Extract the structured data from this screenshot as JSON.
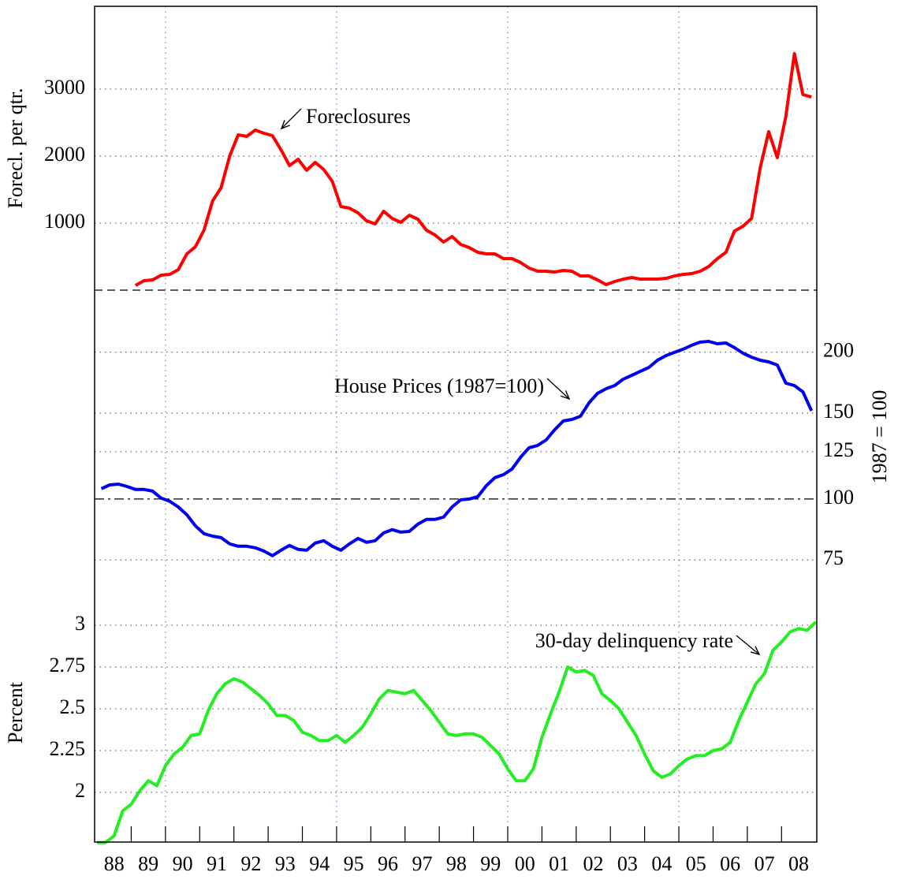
{
  "chart_data": {
    "type": "line",
    "xlim": [
      1987.93,
      2009.03
    ],
    "xticks": [
      1989,
      1990,
      1991,
      1992,
      1993,
      1994,
      1995,
      1996,
      1997,
      1998,
      1999,
      2000,
      2001,
      2002,
      2003,
      2004,
      2005,
      2006,
      2007,
      2008
    ],
    "xtick_labels": [
      {
        "value": 1988.5,
        "label": "88"
      },
      {
        "value": 1989.5,
        "label": "89"
      },
      {
        "value": 1990.5,
        "label": "90"
      },
      {
        "value": 1991.5,
        "label": "91"
      },
      {
        "value": 1992.5,
        "label": "92"
      },
      {
        "value": 1993.5,
        "label": "93"
      },
      {
        "value": 1994.5,
        "label": "94"
      },
      {
        "value": 1995.5,
        "label": "95"
      },
      {
        "value": 1996.5,
        "label": "96"
      },
      {
        "value": 1997.5,
        "label": "97"
      },
      {
        "value": 1998.5,
        "label": "98"
      },
      {
        "value": 1999.5,
        "label": "99"
      },
      {
        "value": 2000.5,
        "label": "00"
      },
      {
        "value": 2001.5,
        "label": "01"
      },
      {
        "value": 2002.5,
        "label": "02"
      },
      {
        "value": 2003.5,
        "label": "03"
      },
      {
        "value": 2004.5,
        "label": "04"
      },
      {
        "value": 2005.5,
        "label": "05"
      },
      {
        "value": 2006.5,
        "label": "06"
      },
      {
        "value": 2007.5,
        "label": "07"
      },
      {
        "value": 2008.5,
        "label": "08"
      }
    ],
    "xgrid": [
      1990,
      1995,
      2000,
      2005
    ],
    "panels": [
      {
        "ylabel": "Forecl. per qtr.",
        "axis_side": "left",
        "log_scale": false,
        "annotation": "Foreclosures",
        "color": "#ff0000",
        "ylim": [
          0,
          4235
        ],
        "yticks": [
          1000,
          2000,
          3000
        ],
        "baseline": 0,
        "baseline_style": "dashed",
        "x": [
          1989.125,
          1989.375,
          1989.625,
          1989.875,
          1990.125,
          1990.375,
          1990.625,
          1990.875,
          1991.125,
          1991.375,
          1991.625,
          1991.875,
          1992.125,
          1992.375,
          1992.625,
          1992.875,
          1993.125,
          1993.375,
          1993.625,
          1993.875,
          1994.125,
          1994.375,
          1994.625,
          1994.875,
          1995.125,
          1995.375,
          1995.625,
          1995.875,
          1996.125,
          1996.375,
          1996.625,
          1996.875,
          1997.125,
          1997.375,
          1997.625,
          1997.875,
          1998.125,
          1998.375,
          1998.625,
          1998.875,
          1999.125,
          1999.375,
          1999.625,
          1999.875,
          2000.125,
          2000.375,
          2000.625,
          2000.875,
          2001.125,
          2001.375,
          2001.625,
          2001.875,
          2002.125,
          2002.375,
          2002.625,
          2002.875,
          2003.125,
          2003.375,
          2003.625,
          2003.875,
          2004.125,
          2004.375,
          2004.625,
          2004.875,
          2005.125,
          2005.375,
          2005.625,
          2005.875,
          2006.125,
          2006.375,
          2006.625,
          2006.875,
          2007.125,
          2007.375,
          2007.625,
          2007.875,
          2008.125,
          2008.375,
          2008.625,
          2008.875
        ],
        "values": [
          71,
          141,
          153,
          224,
          235,
          306,
          541,
          647,
          894,
          1329,
          1529,
          2000,
          2318,
          2294,
          2388,
          2341,
          2306,
          2094,
          1859,
          1953,
          1788,
          1906,
          1800,
          1624,
          1247,
          1224,
          1153,
          1035,
          988,
          1176,
          1071,
          1012,
          1118,
          1059,
          894,
          824,
          718,
          800,
          682,
          635,
          565,
          541,
          541,
          471,
          471,
          412,
          329,
          282,
          282,
          271,
          294,
          282,
          212,
          212,
          153,
          82,
          129,
          165,
          188,
          165,
          165,
          165,
          176,
          212,
          235,
          247,
          282,
          353,
          471,
          565,
          882,
          953,
          1071,
          1824,
          2365,
          1976,
          2588,
          3529,
          2918,
          2882
        ]
      },
      {
        "ylabel": "1987 = 100",
        "axis_side": "right",
        "log_scale": true,
        "annotation": "House Prices (1987=100)",
        "color": "#0000ee",
        "ylim": [
          67.1,
          268.2
        ],
        "yticks": [
          75,
          100,
          125,
          150,
          200
        ],
        "baseline": 100,
        "baseline_style": "dashdot",
        "x": [
          1988.125,
          1988.375,
          1988.625,
          1988.875,
          1989.125,
          1989.375,
          1989.625,
          1989.875,
          1990.125,
          1990.375,
          1990.625,
          1990.875,
          1991.125,
          1991.375,
          1991.625,
          1991.875,
          1992.125,
          1992.375,
          1992.625,
          1992.875,
          1993.125,
          1993.375,
          1993.625,
          1993.875,
          1994.125,
          1994.375,
          1994.625,
          1994.875,
          1995.125,
          1995.375,
          1995.625,
          1995.875,
          1996.125,
          1996.375,
          1996.625,
          1996.875,
          1997.125,
          1997.375,
          1997.625,
          1997.875,
          1998.125,
          1998.375,
          1998.625,
          1998.875,
          1999.125,
          1999.375,
          1999.625,
          1999.875,
          2000.125,
          2000.375,
          2000.625,
          2000.875,
          2001.125,
          2001.375,
          2001.625,
          2001.875,
          2002.125,
          2002.375,
          2002.625,
          2002.875,
          2003.125,
          2003.375,
          2003.625,
          2003.875,
          2004.125,
          2004.375,
          2004.625,
          2004.875,
          2005.125,
          2005.375,
          2005.625,
          2005.875,
          2006.125,
          2006.375,
          2006.625,
          2006.875,
          2007.125,
          2007.375,
          2007.625,
          2007.875,
          2008.125,
          2008.375,
          2008.625,
          2008.875
        ],
        "values": [
          105.0,
          106.9,
          107.3,
          106.1,
          104.6,
          104.6,
          103.8,
          100.4,
          98.9,
          96.3,
          92.8,
          88.1,
          84.9,
          83.9,
          83.3,
          80.9,
          80.0,
          80.0,
          79.4,
          78.2,
          76.5,
          78.5,
          80.3,
          78.8,
          78.5,
          81.2,
          82.1,
          80.0,
          78.5,
          80.9,
          83.0,
          81.5,
          82.1,
          85.2,
          86.5,
          85.5,
          85.8,
          88.8,
          90.8,
          90.8,
          91.8,
          96.3,
          99.6,
          100.0,
          101.1,
          106.5,
          110.6,
          112.2,
          115.2,
          121.8,
          127.4,
          128.8,
          132.2,
          138.8,
          144.6,
          145.6,
          147.8,
          157.5,
          164.7,
          168.4,
          170.9,
          176.1,
          179.4,
          182.8,
          186.2,
          192.6,
          196.9,
          199.9,
          202.9,
          206.7,
          209.8,
          210.5,
          208.2,
          209.0,
          204.4,
          199.1,
          195.4,
          192.6,
          191.1,
          188.3,
          172.9,
          170.9,
          165.9,
          151.7
        ]
      },
      {
        "ylabel": "Percent",
        "axis_side": "left",
        "log_scale": false,
        "annotation": "30-day delinquency rate",
        "color": "#22ee22",
        "ylim": [
          1.703,
          3.25
        ],
        "yticks": [
          2,
          2.25,
          2.5,
          2.75,
          3
        ],
        "x": [
          1988,
          1988.25,
          1988.5,
          1988.75,
          1989,
          1989.25,
          1989.5,
          1989.75,
          1990,
          1990.25,
          1990.5,
          1990.75,
          1991,
          1991.25,
          1991.5,
          1991.75,
          1992,
          1992.25,
          1992.5,
          1992.75,
          1993,
          1993.25,
          1993.5,
          1993.75,
          1994,
          1994.25,
          1994.5,
          1994.75,
          1995,
          1995.25,
          1995.5,
          1995.75,
          1996,
          1996.25,
          1996.5,
          1996.75,
          1997,
          1997.25,
          1997.5,
          1997.75,
          1998,
          1998.25,
          1998.5,
          1998.75,
          1999,
          1999.25,
          1999.5,
          1999.75,
          2000,
          2000.25,
          2000.5,
          2000.75,
          2001,
          2001.25,
          2001.5,
          2001.75,
          2002,
          2002.25,
          2002.5,
          2002.75,
          2003,
          2003.25,
          2003.5,
          2003.75,
          2004,
          2004.25,
          2004.5,
          2004.75,
          2005,
          2005.25,
          2005.5,
          2005.75,
          2006,
          2006.25,
          2006.5,
          2006.75,
          2007,
          2007.25,
          2007.5,
          2007.75,
          2008,
          2008.25,
          2008.5,
          2008.75,
          2009
        ],
        "values": [
          1.7,
          1.7,
          1.74,
          1.89,
          1.93,
          2.01,
          2.07,
          2.04,
          2.16,
          2.23,
          2.27,
          2.34,
          2.35,
          2.49,
          2.59,
          2.65,
          2.68,
          2.66,
          2.62,
          2.58,
          2.53,
          2.46,
          2.46,
          2.43,
          2.36,
          2.34,
          2.31,
          2.31,
          2.34,
          2.3,
          2.34,
          2.39,
          2.47,
          2.56,
          2.61,
          2.6,
          2.59,
          2.61,
          2.55,
          2.49,
          2.42,
          2.35,
          2.34,
          2.35,
          2.35,
          2.33,
          2.28,
          2.23,
          2.14,
          2.07,
          2.07,
          2.14,
          2.33,
          2.47,
          2.6,
          2.75,
          2.72,
          2.73,
          2.7,
          2.59,
          2.55,
          2.5,
          2.42,
          2.34,
          2.23,
          2.13,
          2.09,
          2.11,
          2.16,
          2.2,
          2.22,
          2.22,
          2.25,
          2.26,
          2.3,
          2.43,
          2.54,
          2.65,
          2.71,
          2.85,
          2.9,
          2.96,
          2.98,
          2.97,
          3.02
        ]
      }
    ]
  }
}
